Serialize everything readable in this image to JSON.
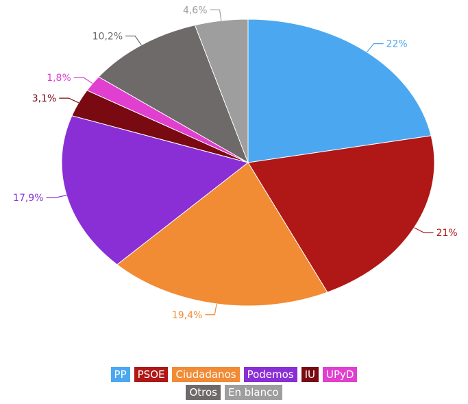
{
  "chart_data": {
    "type": "pie",
    "slices": [
      {
        "name": "PP",
        "value": 22,
        "label": "22%",
        "color": "#4ba8f0"
      },
      {
        "name": "PSOE",
        "value": 21,
        "label": "21%",
        "color": "#b01717"
      },
      {
        "name": "Ciudadanos",
        "value": 19.4,
        "label": "19,4%",
        "color": "#f18b34"
      },
      {
        "name": "Podemos",
        "value": 17.9,
        "label": "17,9%",
        "color": "#8a2fd6"
      },
      {
        "name": "IU",
        "value": 3.1,
        "label": "3,1%",
        "color": "#7a0a12"
      },
      {
        "name": "UPyD",
        "value": 1.8,
        "label": "1,8%",
        "color": "#e03fd0"
      },
      {
        "name": "Otros",
        "value": 10.2,
        "label": "10,2%",
        "color": "#6f6a6a"
      },
      {
        "name": "En blanco",
        "value": 4.6,
        "label": "4,6%",
        "color": "#9e9e9e"
      }
    ],
    "legend_placement": "bottom"
  }
}
